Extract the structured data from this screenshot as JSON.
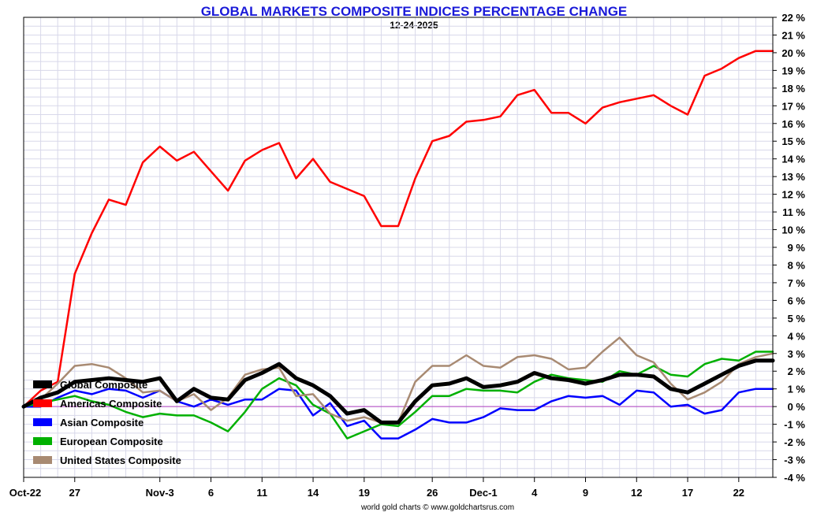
{
  "chart_data": {
    "type": "line",
    "title": "GLOBAL MARKETS COMPOSITE INDICES PERCENTAGE CHANGE",
    "subtitle": "12-24-2025",
    "footer": "world gold charts © www.goldchartsrus.com",
    "ylim": [
      -4,
      22
    ],
    "yticks": [
      22,
      21,
      20,
      19,
      18,
      17,
      16,
      15,
      14,
      13,
      12,
      11,
      10,
      9,
      8,
      7,
      6,
      5,
      4,
      3,
      2,
      1,
      0,
      -1,
      -2,
      -3,
      -4
    ],
    "ytick_labels": [
      "22 %",
      "21 %",
      "20 %",
      "19 %",
      "18 %",
      "17 %",
      "16 %",
      "15 %",
      "14 %",
      "13 %",
      "12 %",
      "11 %",
      "10 %",
      "9 %",
      "8 %",
      "7 %",
      "6 %",
      "5 %",
      "4 %",
      "3 %",
      "2 %",
      "1 %",
      "0 %",
      "-1 %",
      "-2 %",
      "-3 %",
      "-4 %"
    ],
    "x_points": 44,
    "xtick_positions": [
      0,
      3,
      8,
      11,
      14,
      17,
      20,
      24,
      27,
      30,
      33,
      36,
      39,
      42
    ],
    "xtick_labels": [
      "Oct-22",
      "27",
      "Nov-3",
      "6",
      "11",
      "14",
      "19",
      "26",
      "Dec-1",
      "4",
      "9",
      "12",
      "17",
      "22"
    ],
    "grid": true,
    "zero_line": true,
    "legend_position": "lower-left",
    "series": [
      {
        "name": "Global Composite",
        "color": "#000000",
        "width": 5,
        "values": [
          0.0,
          0.5,
          0.8,
          1.4,
          1.5,
          1.6,
          1.5,
          1.4,
          1.6,
          0.3,
          1.0,
          0.5,
          0.4,
          1.5,
          1.9,
          2.4,
          1.6,
          1.2,
          0.6,
          -0.4,
          -0.2,
          -0.9,
          -0.9,
          0.3,
          1.2,
          1.3,
          1.6,
          1.1,
          1.2,
          1.4,
          1.9,
          1.6,
          1.5,
          1.3,
          1.5,
          1.8,
          1.8,
          1.7,
          1.0,
          0.8,
          1.3,
          1.8,
          2.3,
          2.6,
          2.6
        ]
      },
      {
        "name": "Americas Composite",
        "color": "#ff0000",
        "width": 2.5,
        "values": [
          0.0,
          0.9,
          1.4,
          7.5,
          9.8,
          11.7,
          11.4,
          13.8,
          14.7,
          13.9,
          14.4,
          13.3,
          12.2,
          13.9,
          14.5,
          14.9,
          12.9,
          14.0,
          12.7,
          12.3,
          11.9,
          10.2,
          10.2,
          12.9,
          15.0,
          15.3,
          16.1,
          16.2,
          16.4,
          17.6,
          17.9,
          16.6,
          16.6,
          16.0,
          16.9,
          17.2,
          17.4,
          17.6,
          17.0,
          16.5,
          18.7,
          19.1,
          19.7,
          20.1,
          20.1
        ]
      },
      {
        "name": "Asian Composite",
        "color": "#0000ff",
        "width": 2.5,
        "values": [
          0.0,
          0.0,
          0.5,
          0.9,
          0.7,
          1.0,
          0.9,
          0.5,
          0.9,
          0.3,
          0.0,
          0.4,
          0.1,
          0.4,
          0.4,
          1.0,
          0.9,
          -0.5,
          0.2,
          -1.1,
          -0.8,
          -1.8,
          -1.8,
          -1.3,
          -0.7,
          -0.9,
          -0.9,
          -0.6,
          -0.1,
          -0.2,
          -0.2,
          0.3,
          0.6,
          0.5,
          0.6,
          0.1,
          0.9,
          0.8,
          0.0,
          0.1,
          -0.4,
          -0.2,
          0.8,
          1.0,
          1.0
        ]
      },
      {
        "name": "European Composite",
        "color": "#00b000",
        "width": 2.5,
        "values": [
          0.0,
          0.2,
          0.4,
          0.6,
          0.3,
          0.1,
          -0.3,
          -0.6,
          -0.4,
          -0.5,
          -0.5,
          -0.9,
          -1.4,
          -0.3,
          1.0,
          1.6,
          1.2,
          0.1,
          -0.4,
          -1.8,
          -1.4,
          -1.0,
          -1.1,
          -0.3,
          0.6,
          0.6,
          1.0,
          0.9,
          0.9,
          0.8,
          1.4,
          1.8,
          1.6,
          1.5,
          1.4,
          2.0,
          1.8,
          2.3,
          1.8,
          1.7,
          2.4,
          2.7,
          2.6,
          3.1,
          3.1
        ]
      },
      {
        "name": "United States Composite",
        "color": "#a88a72",
        "width": 2.5,
        "values": [
          0.0,
          0.4,
          1.3,
          2.3,
          2.4,
          2.2,
          1.6,
          0.8,
          0.9,
          0.3,
          0.7,
          -0.2,
          0.5,
          1.8,
          2.1,
          2.2,
          0.6,
          0.7,
          -0.4,
          -0.8,
          -0.6,
          -0.9,
          -0.9,
          1.4,
          2.3,
          2.3,
          2.9,
          2.3,
          2.2,
          2.8,
          2.9,
          2.7,
          2.1,
          2.2,
          3.1,
          3.9,
          2.9,
          2.5,
          1.3,
          0.4,
          0.8,
          1.4,
          2.4,
          2.8,
          3.0
        ]
      }
    ]
  }
}
